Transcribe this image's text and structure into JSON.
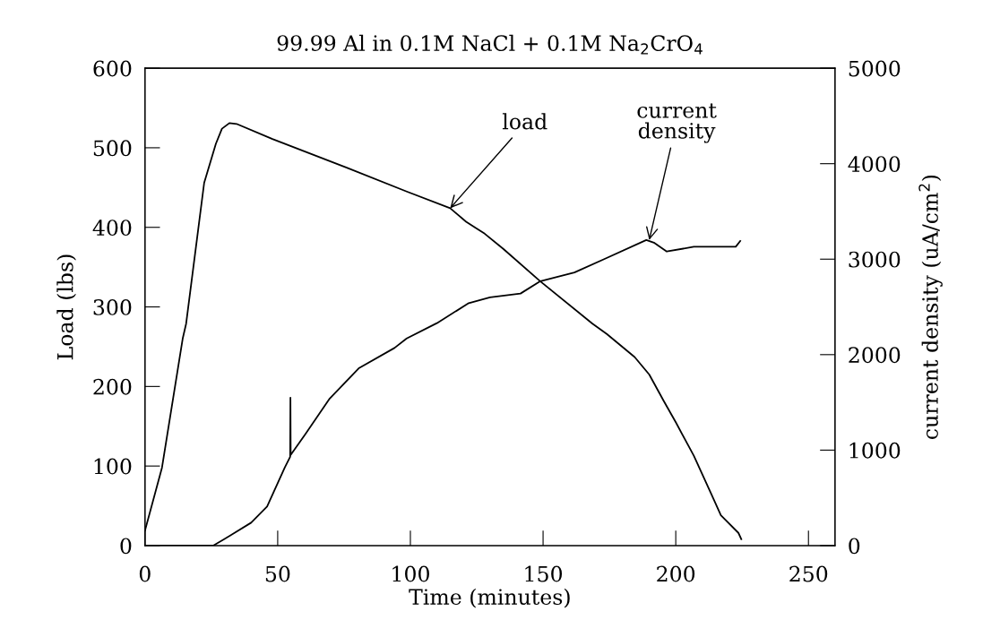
{
  "chart_data": {
    "type": "line",
    "title": "99.99 Al in 0.1M NaCl + 0.1M Na$_{2}$CrO$_{4}$",
    "xlabel": "Time (minutes)",
    "ylabel": "Load (lbs)",
    "y2label": "current density (uA/cm$^{2}$)",
    "xlim": [
      0,
      260
    ],
    "ylim": [
      0,
      600
    ],
    "y2lim": [
      0,
      5000
    ],
    "xticks": [
      0,
      50,
      100,
      150,
      200,
      250
    ],
    "yticks": [
      0,
      100,
      200,
      300,
      400,
      500,
      600
    ],
    "y2ticks": [
      0,
      1000,
      2000,
      3000,
      4000,
      5000
    ],
    "grid": false,
    "marker": "none",
    "line_style": "solid",
    "series": [
      {
        "color": "#000000",
        "x": [
          0,
          6.4,
          14.2,
          15.5,
          22.3,
          26.7,
          29,
          31.8,
          34.5,
          48,
          76,
          98.6,
          115,
          121,
          128,
          135,
          149,
          168.6,
          174,
          184.5,
          190,
          195.6,
          200,
          206.8,
          213.5,
          217,
          223.6,
          224.7
        ],
        "values": [
          19,
          98,
          260,
          279,
          456,
          505,
          524,
          531,
          530,
          511,
          475,
          445,
          424,
          407,
          392,
          373,
          332,
          279,
          266,
          237,
          215,
          181,
          155,
          113,
          64,
          38,
          16,
          8
        ]
      },
      {
        "color": "#000000",
        "axis": "y2",
        "x": [
          0,
          25.7,
          30,
          40,
          46,
          52.7,
          54.7,
          54.8,
          54.9,
          60.5,
          69.6,
          80.7,
          94,
          98.6,
          110,
          122,
          130,
          141.5,
          149,
          161.8,
          173,
          188.9,
          192,
          196.6,
          206.8,
          222.6,
          224.3
        ],
        "values": [
          0,
          0,
          70,
          240,
          410,
          820,
          930,
          1550,
          950,
          1170,
          1540,
          1860,
          2070,
          2170,
          2330,
          2540,
          2600,
          2640,
          2770,
          2860,
          3000,
          3200,
          3170,
          3080,
          3130,
          3130,
          3190
        ]
      }
    ],
    "annotations": [
      {
        "text": "load",
        "x": 115,
        "y": 424
      },
      {
        "text": "current\ndensity",
        "x": 190,
        "y": 384
      }
    ]
  }
}
